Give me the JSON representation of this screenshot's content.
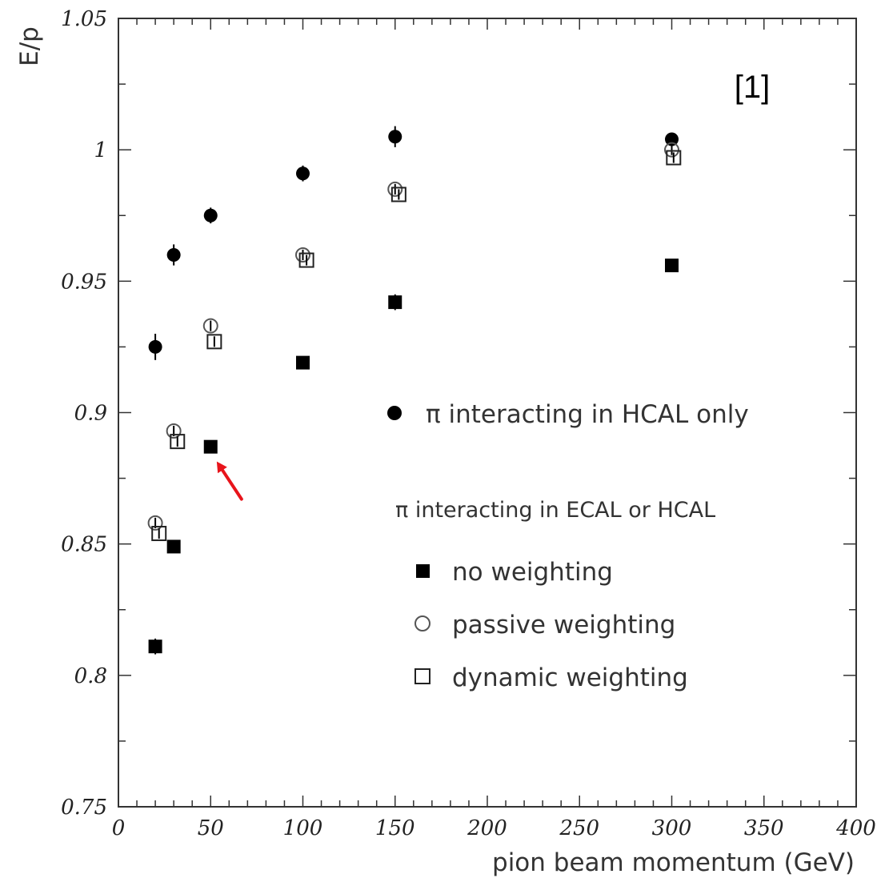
{
  "chart_data": {
    "type": "scatter",
    "title": "",
    "xlabel": "pion beam momentum (GeV)",
    "ylabel": "E/p",
    "xlim": [
      0,
      400
    ],
    "ylim": [
      0.75,
      1.05
    ],
    "x_ticks": [
      "0",
      "50",
      "100",
      "150",
      "200",
      "250",
      "300",
      "350",
      "400"
    ],
    "y_ticks": [
      "0.75",
      "0.8",
      "0.85",
      "0.9",
      "0.95",
      "1",
      "1.05"
    ],
    "grid": false,
    "legend_position": "center-right",
    "annotation": "[1]",
    "legend": {
      "hcal_only": "π interacting in HCAL only",
      "group_header": "π interacting in ECAL or HCAL",
      "no_weighting": "no weighting",
      "passive_weighting": "passive weighting",
      "dynamic_weighting": "dynamic  weighting"
    },
    "series": [
      {
        "name": "π interacting in HCAL only",
        "marker": "filled-circle",
        "x": [
          20,
          30,
          50,
          100,
          150,
          300
        ],
        "y": [
          0.925,
          0.96,
          0.975,
          0.991,
          1.005,
          1.004
        ],
        "err": [
          0.005,
          0.004,
          0.003,
          0.003,
          0.004,
          0.002
        ]
      },
      {
        "name": "no weighting",
        "marker": "filled-square",
        "x": [
          20,
          30,
          50,
          100,
          150,
          300
        ],
        "y": [
          0.811,
          0.849,
          0.887,
          0.919,
          0.942,
          0.956
        ],
        "err": [
          0.003,
          0.002,
          0.002,
          0.002,
          0.003,
          0.001
        ]
      },
      {
        "name": "passive weighting",
        "marker": "open-circle",
        "x": [
          20,
          30,
          50,
          100,
          150,
          300
        ],
        "y": [
          0.858,
          0.893,
          0.933,
          0.96,
          0.985,
          1.0
        ],
        "err": [
          0.002,
          0.002,
          0.002,
          0.002,
          0.002,
          0.002
        ]
      },
      {
        "name": "dynamic  weighting",
        "marker": "open-square",
        "x": [
          22,
          32,
          52,
          102,
          152,
          301
        ],
        "y": [
          0.854,
          0.889,
          0.927,
          0.958,
          0.983,
          0.997
        ],
        "err": [
          0.002,
          0.002,
          0.002,
          0.002,
          0.002,
          0.002
        ]
      }
    ],
    "arrow_target": {
      "x": 52,
      "y": 0.882
    },
    "colors": {
      "axis": "#333333",
      "marker": "#000000",
      "open_marker": "#555555",
      "arrow": "#e8141b"
    }
  }
}
